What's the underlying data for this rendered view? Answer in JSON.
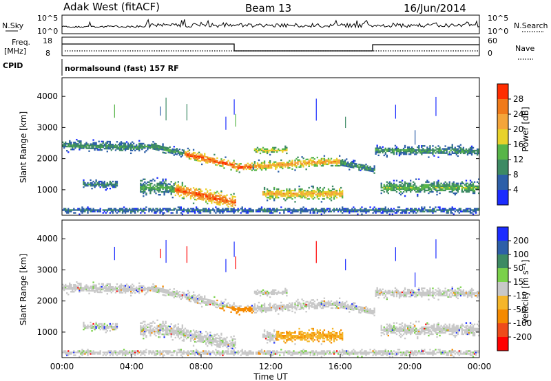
{
  "header": {
    "station": "Adak West (fitACF)",
    "beam": "Beam 13",
    "date": "16/Jun/2014"
  },
  "header_panels": {
    "nsky_label": "N.Sky",
    "nsearch_label": "N.Search",
    "nsky_ticks": [
      "10^5",
      "10^0"
    ],
    "freq_label_1": "Freq.",
    "freq_label_2": "[MHz]",
    "freq_ticks": [
      "18",
      "8"
    ],
    "nave_label": "Nave",
    "nave_ticks": [
      "60",
      "0"
    ],
    "cpid_label": "CPID",
    "cpid_text": "normalsound (fast) 157 RF"
  },
  "chart_data": [
    {
      "type": "heatmap",
      "quantity": "Power",
      "ylabel": "Slant Range [km]",
      "xlabel": "",
      "x_range_hours": [
        0,
        24
      ],
      "ylim": [
        180,
        4600
      ],
      "yticks": [
        1000,
        2000,
        3000,
        4000
      ],
      "colorbar_label": "Power [dB]",
      "colorbar_ticks": [
        "4",
        "8",
        "12",
        "16",
        "20",
        "24",
        "28"
      ],
      "colorbar_colors": [
        "#1b2cff",
        "#2d5fa8",
        "#3d8a63",
        "#57b548",
        "#e8d22a",
        "#f4a53a",
        "#f07a1a",
        "#ff2d00"
      ]
    },
    {
      "type": "heatmap",
      "quantity": "Velocity",
      "ylabel": "Slant Range [km]",
      "xlabel": "Time UT",
      "x_range_hours": [
        0,
        24
      ],
      "ylim": [
        180,
        4600
      ],
      "yticks": [
        1000,
        2000,
        3000,
        4000
      ],
      "xticks": [
        "00:00",
        "04:00",
        "08:00",
        "12:00",
        "16:00",
        "20:00",
        "00:00"
      ],
      "colorbar_label": "Velocity [m s⁻¹]",
      "colorbar_ticks": [
        "200",
        "100",
        "50",
        "15",
        "-15",
        "-50",
        "-100",
        "-200"
      ],
      "colorbar_colors": [
        "#1b2cff",
        "#2d5fa8",
        "#3d8a63",
        "#7ad14a",
        "#c8c8c8",
        "#f5b62a",
        "#f58a00",
        "#ee4b1a",
        "#ff0000"
      ]
    }
  ]
}
